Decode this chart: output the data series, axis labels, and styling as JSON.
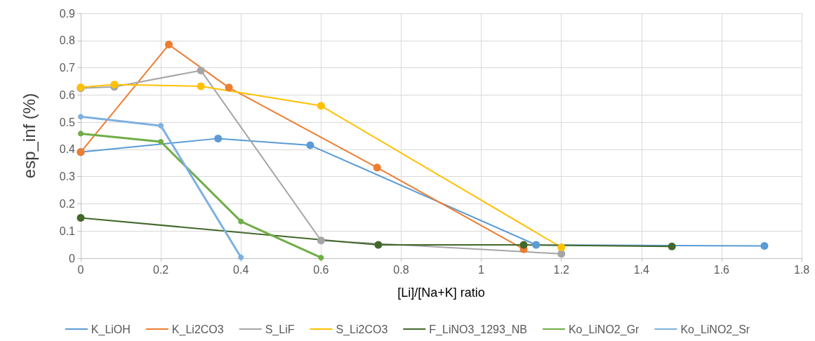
{
  "chart_data": {
    "type": "line",
    "xlabel": "[Li]/[Na+K] ratio",
    "ylabel": "esp_inf (%)",
    "xlim": [
      0,
      1.8
    ],
    "xticks": [
      0,
      0.2,
      0.4,
      0.6,
      0.8,
      1,
      1.2,
      1.4,
      1.6,
      1.8
    ],
    "ylim": [
      0,
      0.9
    ],
    "yticks": [
      0,
      0.1,
      0.2,
      0.3,
      0.4,
      0.5,
      0.6,
      0.7,
      0.8,
      0.9
    ],
    "grid": true,
    "legend": "bottom",
    "marker": "circle",
    "line_style": "solid",
    "series": [
      {
        "name": "K_LiOH",
        "color": "#5b9bd5",
        "x": [
          0,
          0.343,
          0.573,
          1.137,
          1.707
        ],
        "values": [
          0.39,
          0.44,
          0.415,
          0.049,
          0.045
        ]
      },
      {
        "name": "K_Li2CO3",
        "color": "#ed7d31",
        "x": [
          0,
          0.22,
          0.37,
          0.74,
          1.106
        ],
        "values": [
          0.39,
          0.785,
          0.627,
          0.333,
          0.033
        ]
      },
      {
        "name": "S_LiF",
        "color": "#a5a5a5",
        "x": [
          0,
          0.084,
          0.3,
          0.6,
          1.2
        ],
        "values": [
          0.625,
          0.63,
          0.69,
          0.065,
          0.016
        ]
      },
      {
        "name": "S_Li2CO3",
        "color": "#ffc000",
        "x": [
          0,
          0.084,
          0.3,
          0.6,
          1.2
        ],
        "values": [
          0.628,
          0.638,
          0.632,
          0.56,
          0.04
        ]
      },
      {
        "name": "F_LiNO3_1293_NB",
        "color": "#43682b",
        "x": [
          0,
          0.743,
          1.106,
          1.476
        ],
        "values": [
          0.148,
          0.049,
          0.049,
          0.043
        ]
      },
      {
        "name": "Ko_LiNO2_Gr",
        "color": "#70ad47",
        "x": [
          0,
          0.2,
          0.4,
          0.6
        ],
        "values": [
          0.458,
          0.428,
          0.135,
          0.002
        ]
      },
      {
        "name": "Ko_LiNO2_Sr",
        "color": "#7eb0e0",
        "x": [
          0,
          0.2,
          0.4
        ],
        "values": [
          0.52,
          0.487,
          0.003
        ]
      }
    ]
  }
}
